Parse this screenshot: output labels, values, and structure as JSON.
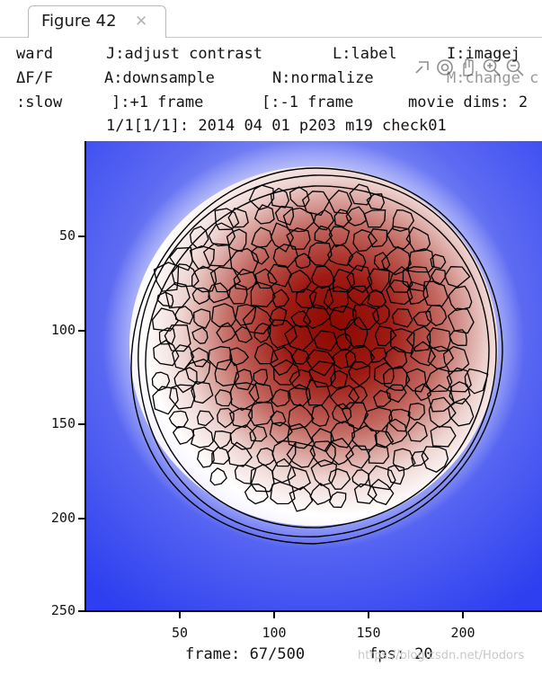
{
  "tab": {
    "title": "Figure 42",
    "close_glyph": "✕"
  },
  "help": {
    "row1": [
      "ward",
      "J:adjust contrast",
      "L:label",
      "I:imagej"
    ],
    "row2": [
      "ΔF/F",
      "A:downsample",
      "N:normalize",
      "M:change c"
    ],
    "row3": [
      ":slow",
      "]:+1 frame",
      "[:-1 frame",
      "movie dims: 2"
    ],
    "title_line": "1/1[1/1]: 2014 04 01 p203 m19 check01"
  },
  "toolbar": {
    "icons": [
      "zoom-rect-icon",
      "target-icon",
      "pan-icon",
      "zoom-in-icon",
      "zoom-out-icon"
    ]
  },
  "axes": {
    "y_ticks": [
      "50",
      "100",
      "150",
      "200",
      "250"
    ],
    "x_ticks": [
      "50",
      "100",
      "150",
      "200"
    ]
  },
  "status": {
    "frame": "frame: 67/500",
    "fps": "fps: 20"
  },
  "watermark": "https://blog.csdn.net/Hodors",
  "colors": {
    "background_blue": "#2c3cf0",
    "core_red": "#8a0a00",
    "contour": "#000000"
  }
}
